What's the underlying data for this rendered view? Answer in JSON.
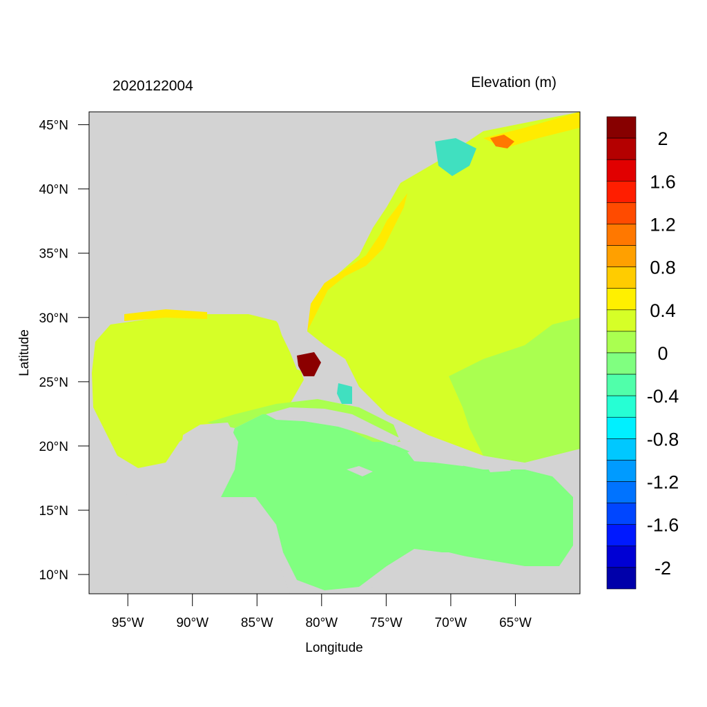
{
  "header": {
    "date_label": "2020122004",
    "variable_label": "Elevation (m)"
  },
  "map": {
    "projection": "lat-lon",
    "extent": {
      "lon_min": -98.0,
      "lon_max": -60.0,
      "lat_min": 8.5,
      "lat_max": 46.0
    },
    "x_label": "Longitude",
    "y_label": "Latitude",
    "x_ticks": [
      {
        "value": -95,
        "label": "95°W"
      },
      {
        "value": -90,
        "label": "90°W"
      },
      {
        "value": -85,
        "label": "85°W"
      },
      {
        "value": -80,
        "label": "80°W"
      },
      {
        "value": -75,
        "label": "75°W"
      },
      {
        "value": -70,
        "label": "70°W"
      },
      {
        "value": -65,
        "label": "65°W"
      }
    ],
    "y_ticks": [
      {
        "value": 45,
        "label": "45°N"
      },
      {
        "value": 40,
        "label": "40°N"
      },
      {
        "value": 35,
        "label": "35°N"
      },
      {
        "value": 30,
        "label": "30°N"
      },
      {
        "value": 25,
        "label": "25°N"
      },
      {
        "value": 20,
        "label": "20°N"
      },
      {
        "value": 15,
        "label": "15°N"
      },
      {
        "value": 10,
        "label": "10°N"
      }
    ],
    "land_color": "#d3d3d3",
    "field_colors": {
      "atlantic_main": "#d6ff27",
      "caribbean": "#80ff80",
      "transition": "#aaff50",
      "surge_positive": "#ffeb00",
      "surge_strong": "#8b0000",
      "negative": "#40e0c0"
    }
  },
  "colorbar": {
    "colors": [
      "#870000",
      "#b40000",
      "#e10000",
      "#ff1e00",
      "#ff4b00",
      "#ff7800",
      "#ffa000",
      "#ffcc00",
      "#fff000",
      "#d6ff27",
      "#aaff50",
      "#80ff80",
      "#50ffaa",
      "#26ffd4",
      "#00f0ff",
      "#00c8ff",
      "#009bff",
      "#0073ff",
      "#0046ff",
      "#0019ff",
      "#0000d4",
      "#0000aa"
    ],
    "labels": [
      "2",
      "1.6",
      "1.2",
      "0.8",
      "0.4",
      "0",
      "-0.4",
      "-0.8",
      "-1.2",
      "-1.6",
      "-2"
    ]
  }
}
